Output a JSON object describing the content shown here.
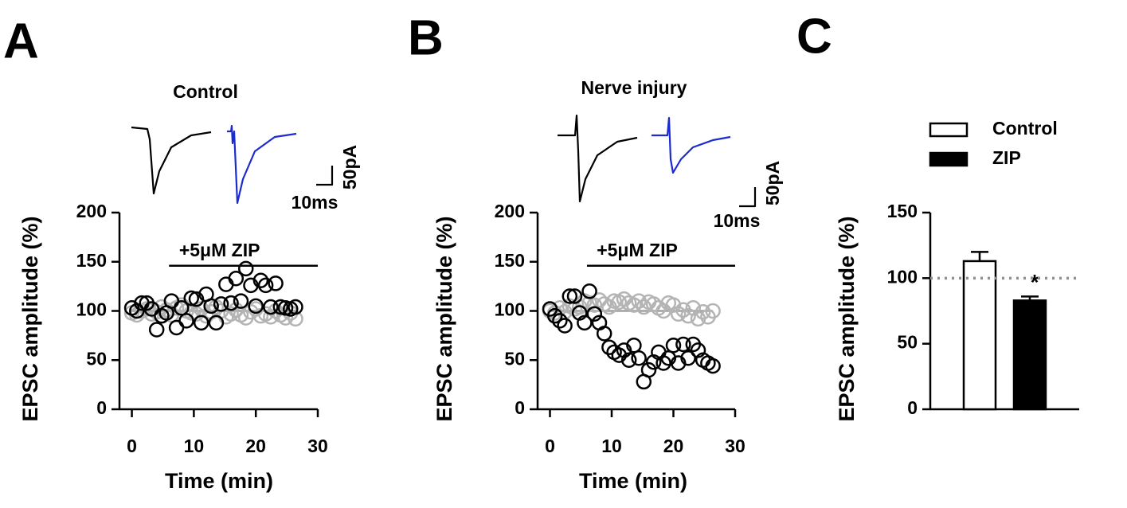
{
  "chart_data": [
    {
      "type": "scatter",
      "panel": "A",
      "title": "Control",
      "xlabel": "Time (min)",
      "ylabel": "EPSC amplitude (%)",
      "annotation": "+5μM ZIP",
      "annotation_span": [
        6,
        30
      ],
      "scale_x_label": "10ms",
      "scale_y_label": "50pA",
      "xlim": [
        -2,
        30
      ],
      "xticks": [
        0,
        10,
        20,
        30
      ],
      "ylim": [
        0,
        200
      ],
      "yticks": [
        0,
        50,
        100,
        150,
        200
      ],
      "reference_line": 100,
      "x": [
        0,
        0.8,
        1.6,
        2.4,
        3.2,
        4,
        4.8,
        5.6,
        6.4,
        7.2,
        8,
        8.8,
        9.6,
        10.4,
        11.2,
        12,
        12.8,
        13.6,
        14.4,
        15.2,
        16,
        16.8,
        17.6,
        18.4,
        19.2,
        20,
        20.8,
        21.6,
        22.4,
        23.2,
        24,
        24.8,
        25.6,
        26.4
      ],
      "series": [
        {
          "color": "#b4b4b4",
          "values": [
            98,
            96,
            100,
            102,
            97,
            99,
            104,
            101,
            96,
            103,
            106,
            100,
            98,
            97,
            102,
            95,
            99,
            104,
            100,
            94,
            97,
            101,
            96,
            93,
            99,
            102,
            95,
            97,
            94,
            100,
            96,
            93,
            98,
            92
          ]
        },
        {
          "color": "#000000",
          "values": [
            103,
            100,
            108,
            108,
            102,
            81,
            95,
            98,
            110,
            83,
            103,
            90,
            113,
            112,
            88,
            117,
            105,
            88,
            107,
            127,
            108,
            133,
            110,
            143,
            126,
            105,
            131,
            126,
            104,
            128,
            104,
            103,
            102,
            104
          ]
        }
      ]
    },
    {
      "type": "scatter",
      "panel": "B",
      "title": "Nerve injury",
      "xlabel": "Time (min)",
      "ylabel": "EPSC amplitude (%)",
      "annotation": "+5μM ZIP",
      "annotation_span": [
        6,
        30
      ],
      "scale_x_label": "10ms",
      "scale_y_label": "50pA",
      "xlim": [
        -2,
        30
      ],
      "xticks": [
        0,
        10,
        20,
        30
      ],
      "ylim": [
        0,
        200
      ],
      "yticks": [
        0,
        50,
        100,
        150,
        200
      ],
      "reference_line": 100,
      "x": [
        0,
        0.8,
        1.6,
        2.4,
        3.2,
        4,
        4.8,
        5.6,
        6.4,
        7.2,
        8,
        8.8,
        9.6,
        10.4,
        11.2,
        12,
        12.8,
        13.6,
        14.4,
        15.2,
        16,
        16.8,
        17.6,
        18.4,
        19.2,
        20,
        20.8,
        21.6,
        22.4,
        23.2,
        24,
        24.8,
        25.6,
        26.4
      ],
      "series": [
        {
          "color": "#b4b4b4",
          "values": [
            100,
            98,
            103,
            99,
            105,
            102,
            104,
            110,
            108,
            106,
            111,
            107,
            104,
            110,
            109,
            112,
            108,
            106,
            110,
            104,
            109,
            107,
            103,
            100,
            108,
            106,
            97,
            101,
            95,
            103,
            92,
            99,
            94,
            100
          ]
        },
        {
          "color": "#000000",
          "values": [
            102,
            95,
            90,
            85,
            115,
            115,
            98,
            88,
            120,
            97,
            88,
            77,
            63,
            58,
            55,
            60,
            50,
            65,
            52,
            28,
            40,
            48,
            58,
            47,
            52,
            65,
            47,
            66,
            52,
            66,
            60,
            50,
            47,
            44
          ]
        }
      ]
    },
    {
      "type": "bar",
      "panel": "C",
      "ylabel": "EPSC amplitude (%)",
      "annotation": "*",
      "ylim": [
        0,
        150
      ],
      "yticks": [
        0,
        50,
        100,
        150
      ],
      "reference_line": 100,
      "categories": [
        null
      ],
      "series": [
        {
          "name": "Control",
          "color": "#ffffff",
          "values": [
            113
          ],
          "errors": [
            7
          ]
        },
        {
          "name": "ZIP",
          "color": "#000000",
          "values": [
            83
          ],
          "errors": [
            3
          ]
        }
      ]
    }
  ]
}
